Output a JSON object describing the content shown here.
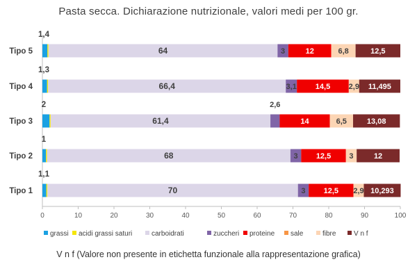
{
  "title": "Pasta secca. Dichiarazione nutrizionale, valori medi per 100 gr.",
  "footnote": "V n f (Valore  non presente in etichetta   funzionale  alla rappresentazione grafica)",
  "chart_data": {
    "type": "bar",
    "orientation": "horizontal",
    "stacked": true,
    "title": "Pasta secca. Dichiarazione nutrizionale, valori medi per 100 gr.",
    "categories": [
      "Tipo 5",
      "Tipo 4",
      "Tipo 3",
      "Tipo 2",
      "Tipo 1"
    ],
    "xlim": [
      0,
      100
    ],
    "xticks": [
      0,
      10,
      20,
      30,
      40,
      50,
      60,
      70,
      80,
      90,
      100
    ],
    "grid": false,
    "legend_position": "bottom",
    "series": [
      {
        "name": "grassi",
        "color": "#1ba1e2",
        "values": [
          1.4,
          1.3,
          2,
          1,
          1.1
        ],
        "labels": [
          "1,4",
          "1,3",
          "2",
          "1",
          "1,1"
        ]
      },
      {
        "name": "acidi grassi saturi",
        "color": "#f5e60a",
        "values": [
          0.3,
          0.3,
          0.3,
          0.3,
          0.3
        ],
        "labels": [
          "",
          "",
          "",
          "",
          ""
        ]
      },
      {
        "name": "carboidrati",
        "color": "#dcd6e8",
        "values": [
          64,
          66.4,
          61.4,
          68,
          70
        ],
        "labels": [
          "64",
          "66,4",
          "61,4",
          "68",
          "70"
        ]
      },
      {
        "name": "zuccheri",
        "color": "#8065a7",
        "values": [
          3,
          3.1,
          2.6,
          3,
          3
        ],
        "labels": [
          "3",
          "3,1",
          "2,6",
          "3",
          "3"
        ]
      },
      {
        "name": "proteine",
        "color": "#f00000",
        "values": [
          12,
          14.5,
          14,
          12.5,
          12.5
        ],
        "labels": [
          "12",
          "14,5",
          "14",
          "12,5",
          "12,5"
        ]
      },
      {
        "name": "sale",
        "color": "#f79646",
        "values": [
          0,
          0,
          0,
          0,
          0
        ],
        "labels": [
          "",
          "",
          "",
          "",
          ""
        ]
      },
      {
        "name": "fibre",
        "color": "#fcd5b4",
        "values": [
          6.8,
          2.9,
          6.5,
          3,
          2.9
        ],
        "labels": [
          "6,8",
          "2,9",
          "6,5",
          "3",
          "2,9"
        ]
      },
      {
        "name": "V n f",
        "color": "#7b2a2a",
        "values": [
          12.5,
          11.495,
          13.08,
          12,
          10.293
        ],
        "labels": [
          "12,5",
          "11,495",
          "13,08",
          "12",
          "10,293"
        ]
      }
    ]
  }
}
